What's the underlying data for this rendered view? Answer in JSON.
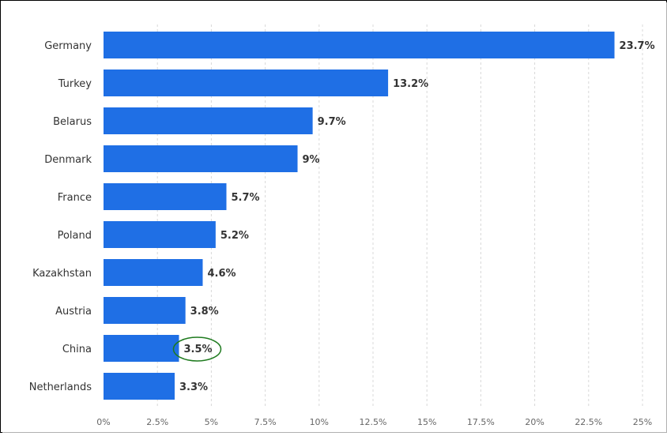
{
  "chart_data": {
    "type": "bar",
    "orientation": "horizontal",
    "categories": [
      "Germany",
      "Turkey",
      "Belarus",
      "Denmark",
      "France",
      "Poland",
      "Kazakhstan",
      "Austria",
      "China",
      "Netherlands"
    ],
    "values": [
      23.7,
      13.2,
      9.7,
      9,
      5.7,
      5.2,
      4.6,
      3.8,
      3.5,
      3.3
    ],
    "value_labels": [
      "23.7%",
      "13.2%",
      "9.7%",
      "9%",
      "5.7%",
      "5.2%",
      "4.6%",
      "3.8%",
      "3.5%",
      "3.3%"
    ],
    "x_ticks": [
      0,
      2.5,
      5,
      7.5,
      10,
      12.5,
      15,
      17.5,
      20,
      22.5,
      25
    ],
    "x_tick_labels": [
      "0%",
      "2.5%",
      "5%",
      "7.5%",
      "10%",
      "12.5%",
      "15%",
      "17.5%",
      "20%",
      "22.5%",
      "25%"
    ],
    "xlim": [
      0,
      25
    ],
    "grid": "vertical-dashed",
    "highlighted_category": "China",
    "colors": {
      "bar": "#1f6fe5",
      "grid": "#d8d8d8",
      "highlight_ring": "#1e7a1e"
    }
  }
}
